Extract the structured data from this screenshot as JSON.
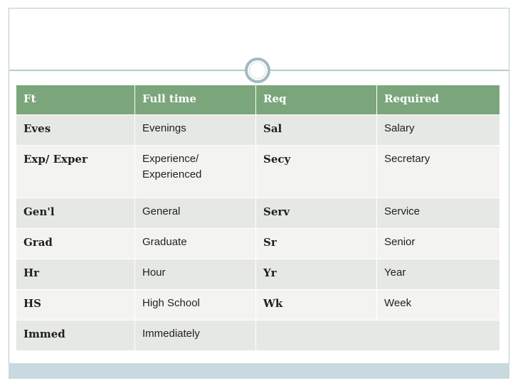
{
  "table": {
    "header": [
      "Ft",
      "Full time",
      "Req",
      "Required"
    ],
    "rows": [
      [
        "Eves",
        "Evenings",
        "Sal",
        "Salary"
      ],
      [
        "Exp/ Exper",
        "Experience/ Experienced",
        "Secy",
        "Secretary"
      ],
      [
        "Gen'l",
        "General",
        "Serv",
        "Service"
      ],
      [
        "Grad",
        "Graduate",
        "Sr",
        "Senior"
      ],
      [
        "Hr",
        "Hour",
        "Yr",
        "Year"
      ],
      [
        "HS",
        "High School",
        "Wk",
        "Week"
      ],
      [
        "Immed",
        "Immediately",
        "",
        ""
      ]
    ]
  },
  "colors": {
    "header_bg": "#7ba67b",
    "row_odd": "#e6e8e5",
    "row_even": "#f3f4f2",
    "frame": "#b6cbd0",
    "bottom_band": "#c8dadf"
  }
}
